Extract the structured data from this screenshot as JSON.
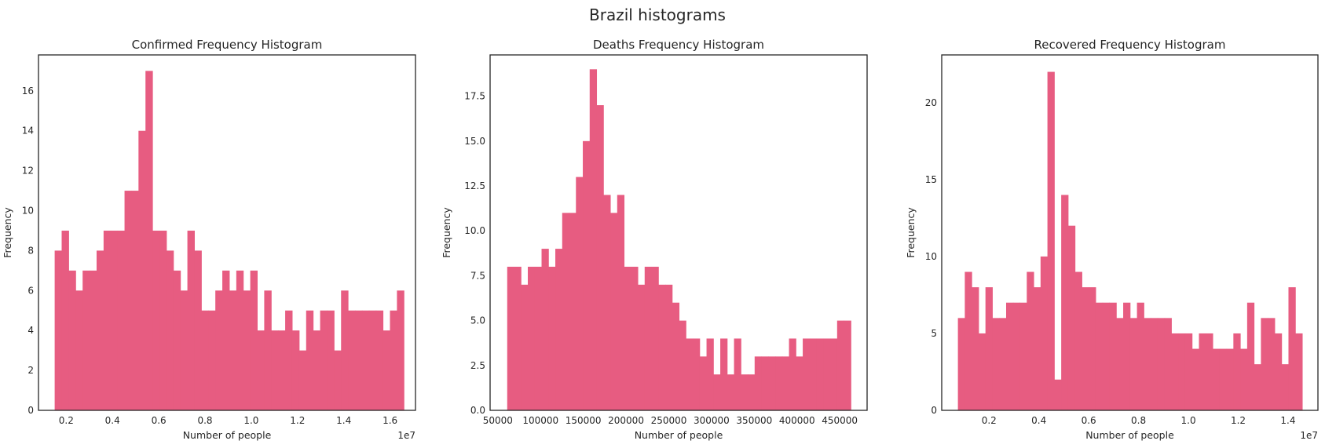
{
  "figure": {
    "title": "Brazil histograms",
    "bar_color": "#e75c81"
  },
  "chart_data": [
    {
      "type": "bar",
      "title": "Confirmed Frequency Histogram",
      "xlabel": "Number of people",
      "ylabel": "Frequency",
      "x_offset_label": "1e7",
      "bin_range": [
        0.15,
        1.66
      ],
      "xlim": [
        0.08,
        1.71
      ],
      "ylim": [
        0,
        17.8
      ],
      "xticks": [
        {
          "v": 0.2,
          "label": "0.2"
        },
        {
          "v": 0.4,
          "label": "0.4"
        },
        {
          "v": 0.6,
          "label": "0.6"
        },
        {
          "v": 0.8,
          "label": "0.8"
        },
        {
          "v": 1.0,
          "label": "1.0"
        },
        {
          "v": 1.2,
          "label": "1.2"
        },
        {
          "v": 1.4,
          "label": "1.4"
        },
        {
          "v": 1.6,
          "label": "1.6"
        }
      ],
      "yticks": [
        {
          "v": 0,
          "label": "0"
        },
        {
          "v": 2,
          "label": "2"
        },
        {
          "v": 4,
          "label": "4"
        },
        {
          "v": 6,
          "label": "6"
        },
        {
          "v": 8,
          "label": "8"
        },
        {
          "v": 10,
          "label": "10"
        },
        {
          "v": 12,
          "label": "12"
        },
        {
          "v": 14,
          "label": "14"
        },
        {
          "v": 16,
          "label": "16"
        }
      ],
      "values": [
        8,
        9,
        7,
        6,
        7,
        7,
        8,
        9,
        9,
        9,
        11,
        11,
        14,
        17,
        9,
        9,
        8,
        7,
        6,
        9,
        8,
        5,
        5,
        6,
        7,
        6,
        7,
        6,
        7,
        4,
        6,
        4,
        4,
        5,
        4,
        3,
        5,
        4,
        5,
        5,
        3,
        6,
        5,
        5,
        5,
        5,
        5,
        4,
        5,
        6
      ]
    },
    {
      "type": "bar",
      "title": "Deaths Frequency Histogram",
      "xlabel": "Number of people",
      "ylabel": "Frequency",
      "x_offset_label": "",
      "bin_range": [
        61000,
        463000
      ],
      "xlim": [
        41000,
        482000
      ],
      "ylim": [
        0,
        19.8
      ],
      "xticks": [
        {
          "v": 50000,
          "label": "50000"
        },
        {
          "v": 100000,
          "label": "100000"
        },
        {
          "v": 150000,
          "label": "150000"
        },
        {
          "v": 200000,
          "label": "200000"
        },
        {
          "v": 250000,
          "label": "250000"
        },
        {
          "v": 300000,
          "label": "300000"
        },
        {
          "v": 350000,
          "label": "350000"
        },
        {
          "v": 400000,
          "label": "400000"
        },
        {
          "v": 450000,
          "label": "450000"
        }
      ],
      "yticks": [
        {
          "v": 0,
          "label": "0.0"
        },
        {
          "v": 2.5,
          "label": "2.5"
        },
        {
          "v": 5,
          "label": "5.0"
        },
        {
          "v": 7.5,
          "label": "7.5"
        },
        {
          "v": 10,
          "label": "10.0"
        },
        {
          "v": 12.5,
          "label": "12.5"
        },
        {
          "v": 15,
          "label": "15.0"
        },
        {
          "v": 17.5,
          "label": "17.5"
        }
      ],
      "values": [
        8,
        8,
        7,
        8,
        8,
        9,
        8,
        9,
        11,
        11,
        13,
        15,
        19,
        17,
        12,
        11,
        12,
        8,
        8,
        7,
        8,
        8,
        7,
        7,
        6,
        5,
        4,
        4,
        3,
        4,
        2,
        4,
        2,
        4,
        2,
        2,
        3,
        3,
        3,
        3,
        3,
        4,
        3,
        4,
        4,
        4,
        4,
        4,
        5,
        5
      ]
    },
    {
      "type": "bar",
      "title": "Recovered Frequency Histogram",
      "xlabel": "Number of people",
      "ylabel": "Frequency",
      "x_offset_label": "1e7",
      "bin_range": [
        0.075,
        1.457
      ],
      "xlim": [
        0.01,
        1.52
      ],
      "ylim": [
        0,
        23.1
      ],
      "xticks": [
        {
          "v": 0.2,
          "label": "0.2"
        },
        {
          "v": 0.4,
          "label": "0.4"
        },
        {
          "v": 0.6,
          "label": "0.6"
        },
        {
          "v": 0.8,
          "label": "0.8"
        },
        {
          "v": 1.0,
          "label": "1.0"
        },
        {
          "v": 1.2,
          "label": "1.2"
        },
        {
          "v": 1.4,
          "label": "1.4"
        }
      ],
      "yticks": [
        {
          "v": 0,
          "label": "0"
        },
        {
          "v": 5,
          "label": "5"
        },
        {
          "v": 10,
          "label": "10"
        },
        {
          "v": 15,
          "label": "15"
        },
        {
          "v": 20,
          "label": "20"
        }
      ],
      "values": [
        6,
        9,
        8,
        5,
        8,
        6,
        6,
        7,
        7,
        7,
        9,
        8,
        10,
        22,
        2,
        14,
        12,
        9,
        8,
        8,
        7,
        7,
        7,
        6,
        7,
        6,
        7,
        6,
        6,
        6,
        6,
        5,
        5,
        5,
        4,
        5,
        5,
        4,
        4,
        4,
        5,
        4,
        7,
        3,
        6,
        6,
        5,
        3,
        8,
        5
      ]
    }
  ]
}
